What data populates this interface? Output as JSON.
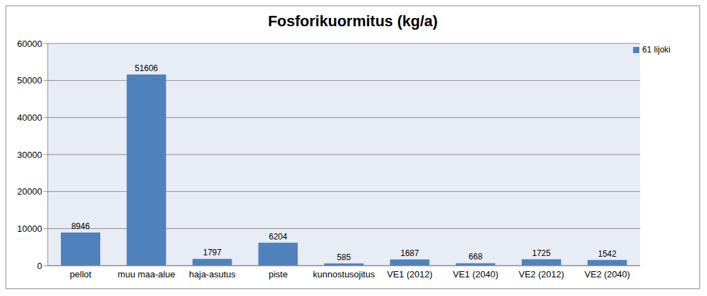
{
  "chart_data": {
    "type": "bar",
    "title": "Fosforikuormitus (kg/a)",
    "categories": [
      "pellot",
      "muu maa-alue",
      "haja-asutus",
      "piste",
      "kunnostusojitus",
      "VE1 (2012)",
      "VE1 (2040)",
      "VE2 (2012)",
      "VE2 (2040)"
    ],
    "series": [
      {
        "name": "61 Iijoki",
        "color": "#4f81bd",
        "values": [
          8946,
          51606,
          1797,
          6204,
          585,
          1687,
          668,
          1725,
          1542
        ]
      }
    ],
    "ylim": [
      0,
      60000
    ],
    "yticks": [
      0,
      10000,
      20000,
      30000,
      40000,
      50000,
      60000
    ],
    "grid": true,
    "legend": "upper right",
    "data_labels": true
  }
}
